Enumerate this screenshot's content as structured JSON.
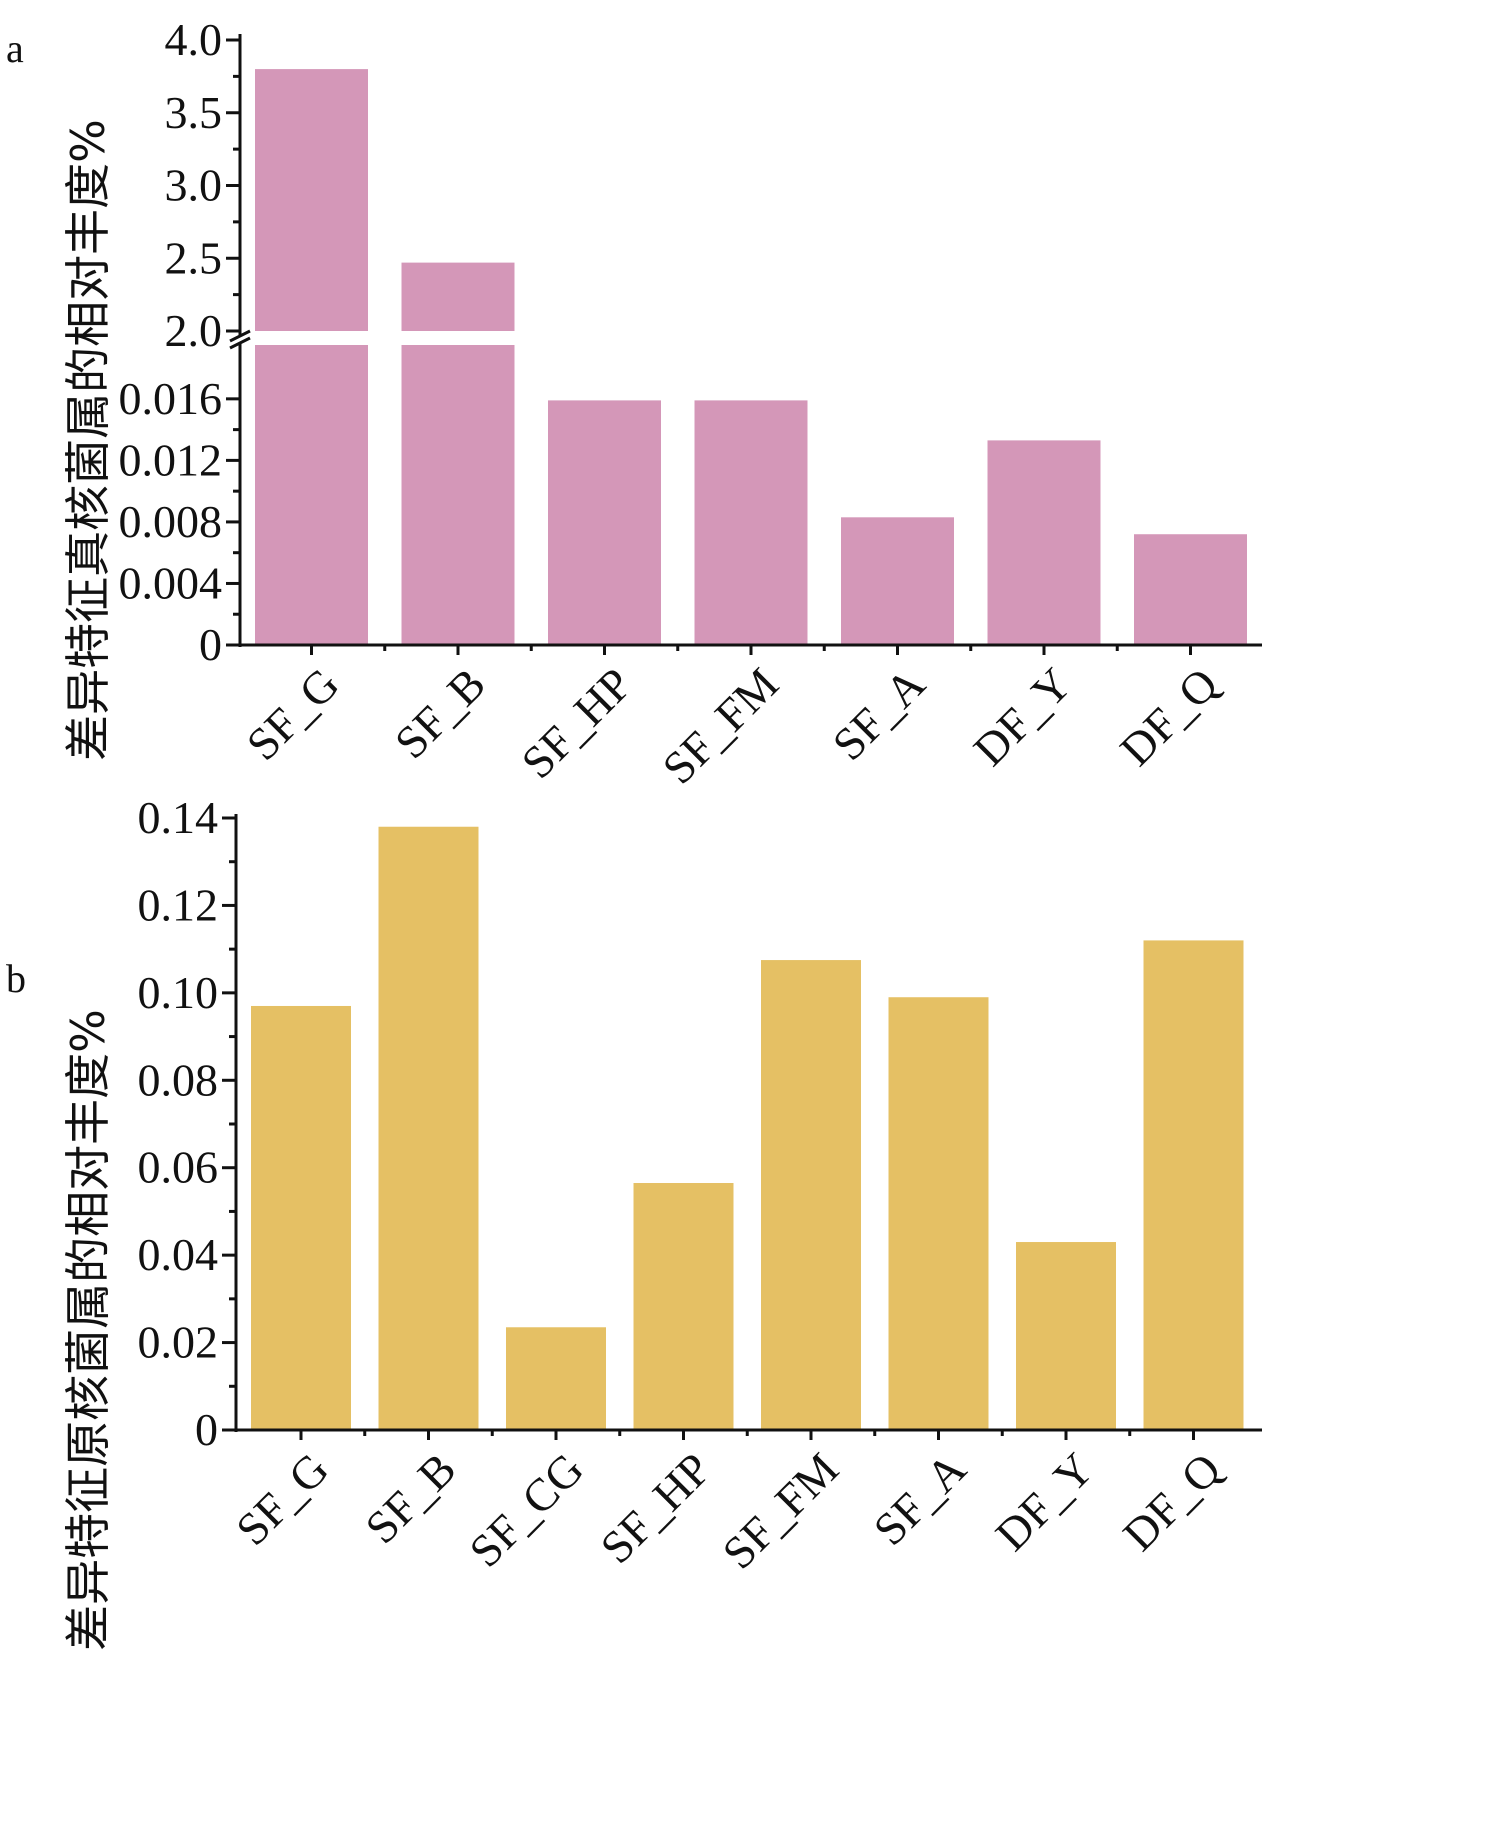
{
  "chart_data": [
    {
      "panel": "a",
      "type": "bar",
      "ylabel": "差异特征真核菌属的相对丰度%",
      "categories": [
        "SF_G",
        "SF_B",
        "SF_HP",
        "SF_FM",
        "SF_A",
        "DF_Y",
        "DF_Q"
      ],
      "values": [
        3.8,
        2.47,
        0.0159,
        0.0159,
        0.0083,
        0.0133,
        0.0072
      ],
      "bar_color": "#d497b8",
      "axis_break": {
        "lower_ylim": [
          0,
          0.0195
        ],
        "upper_ylim": [
          2.0,
          4.0
        ]
      },
      "lower_ticks": [
        "0",
        "0.004",
        "0.008",
        "0.012",
        "0.016"
      ],
      "lower_tick_values": [
        0,
        0.004,
        0.008,
        0.012,
        0.016
      ],
      "upper_ticks": [
        "2.0",
        "2.5",
        "3.0",
        "3.5",
        "4.0"
      ],
      "upper_tick_values": [
        2.0,
        2.5,
        3.0,
        3.5,
        4.0
      ],
      "grid": false
    },
    {
      "panel": "b",
      "type": "bar",
      "ylabel": "差异特征原核菌属的相对丰度%",
      "categories": [
        "SF_G",
        "SF_B",
        "SF_CG",
        "SF_HP",
        "SF_FM",
        "SF_A",
        "DF_Y",
        "DF_Q"
      ],
      "values": [
        0.097,
        0.138,
        0.0235,
        0.0565,
        0.1075,
        0.099,
        0.043,
        0.112
      ],
      "bar_color": "#e5c064",
      "ylim": [
        0,
        0.14
      ],
      "ticks": [
        "0",
        "0.02",
        "0.04",
        "0.06",
        "0.08",
        "0.10",
        "0.12",
        "0.14"
      ],
      "tick_values": [
        0,
        0.02,
        0.04,
        0.06,
        0.08,
        0.1,
        0.12,
        0.14
      ],
      "grid": false
    }
  ]
}
